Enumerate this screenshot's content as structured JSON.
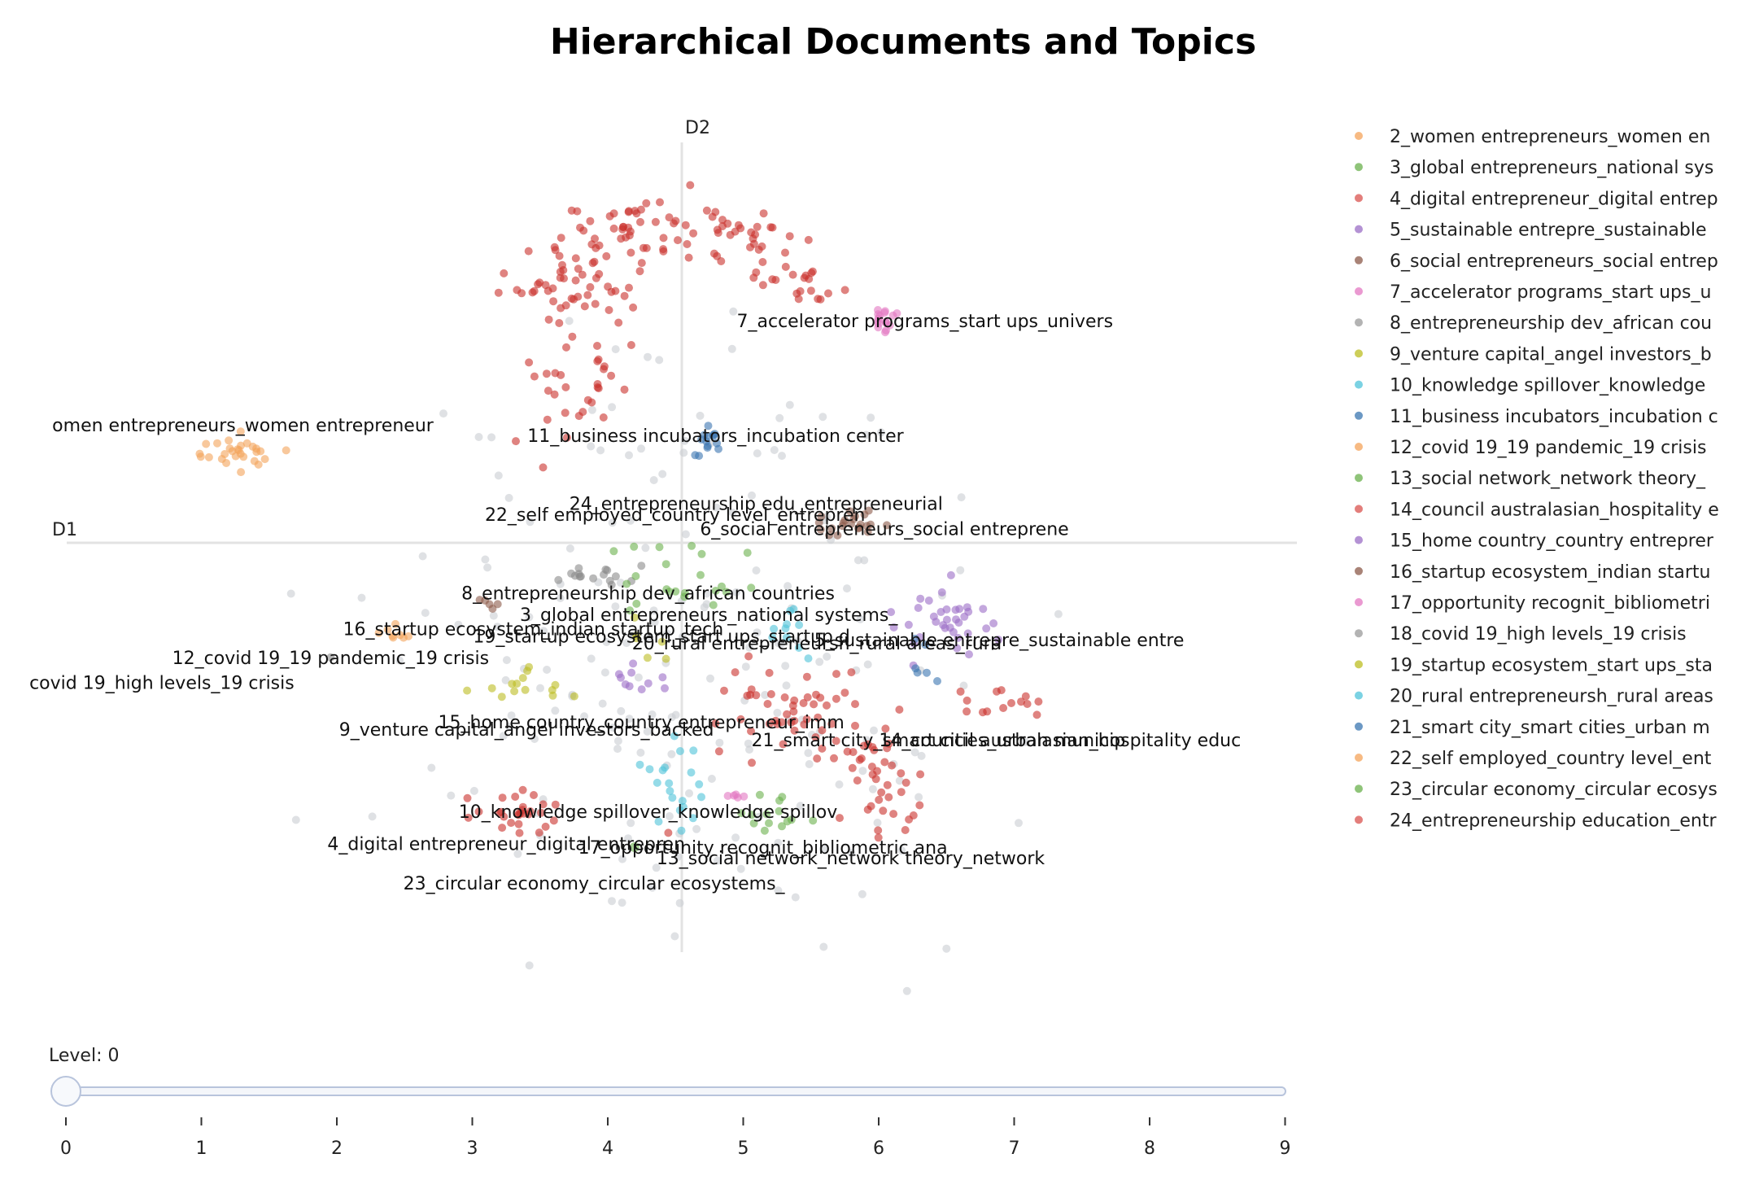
{
  "chart_data": {
    "type": "scatter",
    "title": "Hierarchical Documents and Topics",
    "xlabel": "D1",
    "ylabel": "D2",
    "xlim": [
      -9.2,
      8.4
    ],
    "ylim": [
      -7.0,
      6.8
    ],
    "colors": {
      "orange": "#f4a35a",
      "green": "#6ab04c",
      "red": "#c9302c",
      "purple": "#9b6dc6",
      "brown": "#8c5a4a",
      "pink": "#e377c2",
      "gray": "#8a8a8a",
      "olive": "#bcbd22",
      "cyan": "#4fc3d9",
      "blue": "#3a75b0",
      "unassigned": "#c9cdd2"
    },
    "legend": [
      {
        "label": "2_women entrepreneurs_women en",
        "color": "#f4a35a"
      },
      {
        "label": "3_global entrepreneurs_national sys",
        "color": "#6ab04c"
      },
      {
        "label": "4_digital entrepreneur_digital entrep",
        "color": "#d9534f"
      },
      {
        "label": "5_sustainable entrepre_sustainable",
        "color": "#9b6dc6"
      },
      {
        "label": "6_social entrepreneurs_social entrep",
        "color": "#8c5a4a"
      },
      {
        "label": "7_accelerator programs_start ups_u",
        "color": "#e377c2"
      },
      {
        "label": "8_entrepreneurship dev_african cou",
        "color": "#9a9a9a"
      },
      {
        "label": "9_venture capital_angel investors_b",
        "color": "#bcbd22"
      },
      {
        "label": "10_knowledge spillover_knowledge",
        "color": "#4fc3d9"
      },
      {
        "label": "11_business incubators_incubation c",
        "color": "#3a75b0"
      },
      {
        "label": "12_covid 19_19 pandemic_19 crisis",
        "color": "#f4a35a"
      },
      {
        "label": "13_social network_network theory_",
        "color": "#6ab04c"
      },
      {
        "label": "14_council australasian_hospitality e",
        "color": "#d9534f"
      },
      {
        "label": "15_home country_country entreprer",
        "color": "#9b6dc6"
      },
      {
        "label": "16_startup ecosystem_indian startu",
        "color": "#8c5a4a"
      },
      {
        "label": "17_opportunity recognit_bibliometri",
        "color": "#e377c2"
      },
      {
        "label": "18_covid 19_high levels_19 crisis",
        "color": "#9a9a9a"
      },
      {
        "label": "19_startup ecosystem_start ups_sta",
        "color": "#bcbd22"
      },
      {
        "label": "20_rural entrepreneursh_rural areas",
        "color": "#4fc3d9"
      },
      {
        "label": "21_smart city_smart cities_urban m",
        "color": "#3a75b0"
      },
      {
        "label": "22_self employed_country level_ent",
        "color": "#f4a35a"
      },
      {
        "label": "23_circular economy_circular ecosys",
        "color": "#6ab04c"
      },
      {
        "label": "24_entrepreneurship education_entr",
        "color": "#d9534f"
      }
    ],
    "topic_labels": [
      {
        "text": "7_accelerator programs_start ups_univers",
        "x": 3.6,
        "y": 3.1
      },
      {
        "text": "omen entrepreneurs_women entrepreneur",
        "x": -6.5,
        "y": 1.65
      },
      {
        "text": "11_business incubators_incubation center",
        "x": 0.5,
        "y": 1.5
      },
      {
        "text": "24_entrepreneurship edu_entrepreneurial",
        "x": 1.1,
        "y": 0.55
      },
      {
        "text": "22_self employed_country level_entrepren",
        "x": -0.1,
        "y": 0.4
      },
      {
        "text": "6_social entrepreneurs_social entreprene",
        "x": 3.0,
        "y": 0.2
      },
      {
        "text": "8_entrepreneurship dev_african countries",
        "x": -0.5,
        "y": -0.7
      },
      {
        "text": "3_global entrepreneurs_national systems_",
        "x": 0.4,
        "y": -1.0
      },
      {
        "text": "16_startup ecosystem_indian startup_tech",
        "x": -2.2,
        "y": -1.2
      },
      {
        "text": "19_startup ecosystem_start ups_startup d",
        "x": -0.3,
        "y": -1.3
      },
      {
        "text": "5_sustainable entrepre_sustainable entre",
        "x": 4.7,
        "y": -1.35
      },
      {
        "text": "20_rural entrepreneursh_rural areas_rura",
        "x": 2.0,
        "y": -1.4
      },
      {
        "text": "12_covid 19_19 pandemic_19 crisis",
        "x": -5.2,
        "y": -1.6
      },
      {
        "text": "covid 19_high levels_19 crisis",
        "x": -7.7,
        "y": -1.95
      },
      {
        "text": "15_home country_country entrepreneur_imm",
        "x": -0.6,
        "y": -2.5
      },
      {
        "text": "9_venture capital_angel investors_backed",
        "x": -2.3,
        "y": -2.6
      },
      {
        "text": "21_smart city_smart cities_urban municip",
        "x": 3.8,
        "y": -2.75
      },
      {
        "text": "14_council australasian_hospitality educ",
        "x": 5.6,
        "y": -2.75
      },
      {
        "text": "10_knowledge spillover_knowledge spillov",
        "x": -0.5,
        "y": -3.75
      },
      {
        "text": "4_digital entrepreneur_digital entrepren",
        "x": -2.6,
        "y": -4.2
      },
      {
        "text": "17_opportunity recognit_bibliometric ana",
        "x": 1.2,
        "y": -4.25
      },
      {
        "text": "13_social network_network theory_network",
        "x": 2.5,
        "y": -4.4
      },
      {
        "text": "23_circular economy_circular ecosystems_",
        "x": -1.3,
        "y": -4.75
      }
    ]
  },
  "slider": {
    "label": "Level: 0",
    "value": 0,
    "ticks": [
      "0",
      "1",
      "2",
      "3",
      "4",
      "5",
      "6",
      "7",
      "8",
      "9"
    ]
  }
}
